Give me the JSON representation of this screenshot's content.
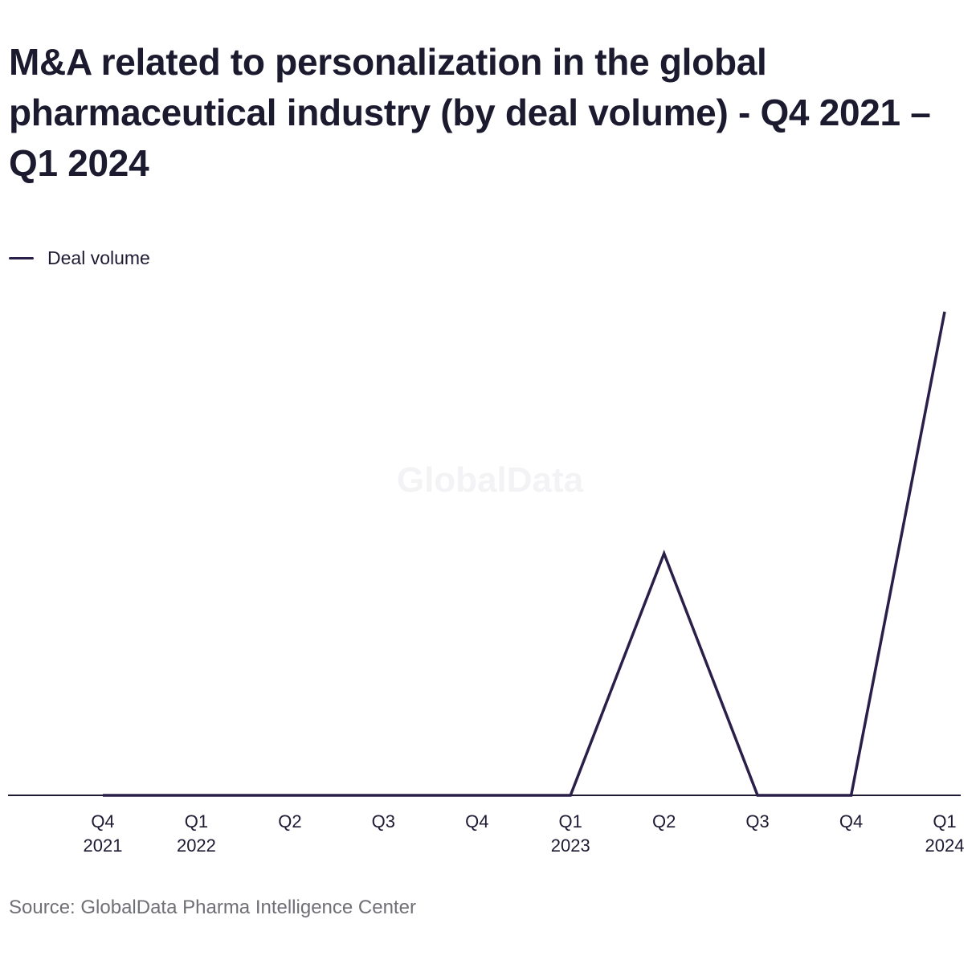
{
  "title": "M&A related to personalization in the global pharmaceutical industry (by deal volume) - Q4 2021 – Q1 2024",
  "legend": {
    "label": "Deal volume"
  },
  "source": "Source: GlobalData Pharma Intelligence Center",
  "watermark": "GlobalData",
  "colors": {
    "line": "#2a1f49",
    "axis": "#1f1a33",
    "text": "#1f1a33",
    "source_text": "#6f6f76"
  },
  "chart_data": {
    "type": "line",
    "categories": [
      "Q4 2021",
      "Q1 2022",
      "Q2",
      "Q3",
      "Q4",
      "Q1 2023",
      "Q2",
      "Q3",
      "Q4",
      "Q1 2024"
    ],
    "tick_labels": [
      [
        "Q4",
        "2021"
      ],
      [
        "Q1",
        "2022"
      ],
      [
        "Q2",
        ""
      ],
      [
        "Q3",
        ""
      ],
      [
        "Q4",
        ""
      ],
      [
        "Q1",
        "2023"
      ],
      [
        "Q2",
        ""
      ],
      [
        "Q3",
        ""
      ],
      [
        "Q4",
        ""
      ],
      [
        "Q1",
        "2024"
      ]
    ],
    "series": [
      {
        "name": "Deal volume",
        "values": [
          0,
          0,
          0,
          0,
          0,
          0,
          1,
          0,
          0,
          2
        ]
      }
    ],
    "ylim": [
      0,
      2
    ],
    "grid": false,
    "legend_position": "top-left"
  }
}
